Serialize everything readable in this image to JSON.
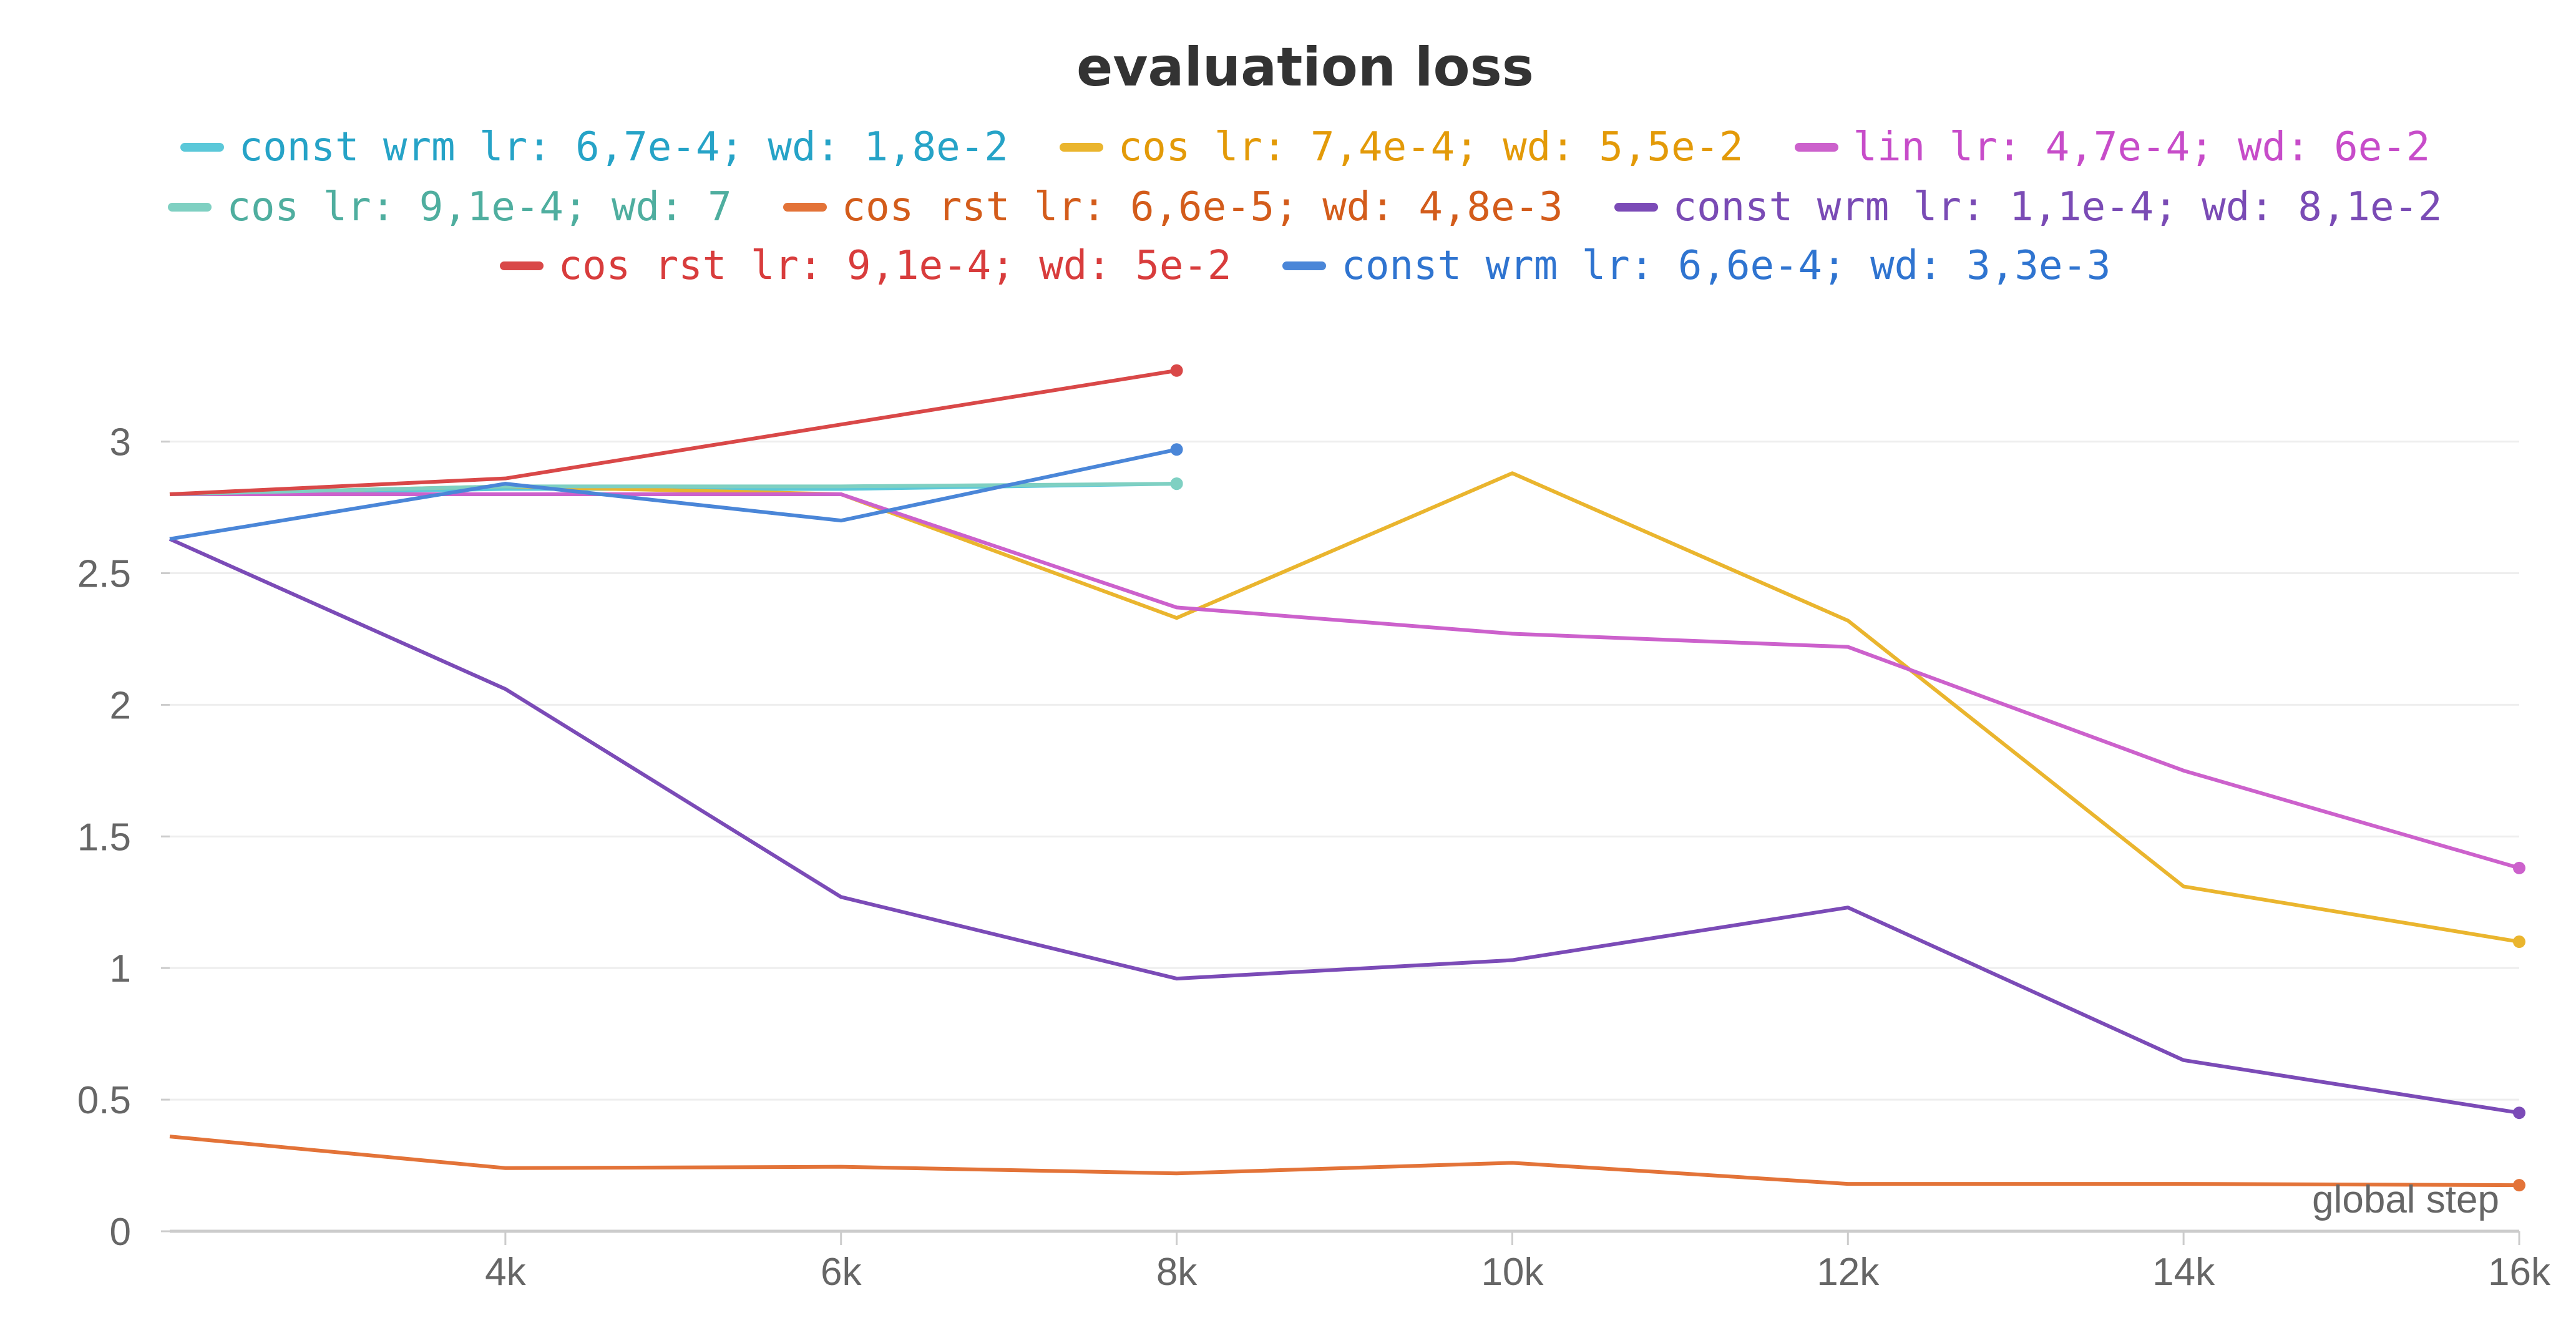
{
  "chart_data": {
    "type": "line",
    "title": "evaluation loss",
    "xlabel": "global step",
    "ylabel": "",
    "xlim": [
      2048,
      16384
    ],
    "ylim": [
      0,
      3.35
    ],
    "grid": true,
    "legend_placement": "top",
    "x_ticks": [
      {
        "value": 4096,
        "label": "4k"
      },
      {
        "value": 6144,
        "label": "6k"
      },
      {
        "value": 8192,
        "label": "8k"
      },
      {
        "value": 10240,
        "label": "10k"
      },
      {
        "value": 12288,
        "label": "12k"
      },
      {
        "value": 14336,
        "label": "14k"
      },
      {
        "value": 16384,
        "label": "16k"
      }
    ],
    "y_ticks": [
      {
        "value": 0,
        "label": "0"
      },
      {
        "value": 0.5,
        "label": "0.5"
      },
      {
        "value": 1,
        "label": "1"
      },
      {
        "value": 1.5,
        "label": "1.5"
      },
      {
        "value": 2,
        "label": "2"
      },
      {
        "value": 2.5,
        "label": "2.5"
      },
      {
        "value": 3,
        "label": "3"
      }
    ],
    "series": [
      {
        "name": "const wrm lr: 6,7e-4; wd: 1,8e-2",
        "color": "#5bc8d9",
        "text_color": "#26a3c7",
        "legend_row": 1,
        "x": [
          2048,
          4096,
          6144,
          8192
        ],
        "y": [
          2.8,
          2.82,
          2.82,
          2.84
        ]
      },
      {
        "name": "cos lr: 7,4e-4; wd: 5,5e-2",
        "color": "#eab52e",
        "text_color": "#e39a08",
        "legend_row": 1,
        "x": [
          2048,
          4096,
          6144,
          8192,
          10240,
          12288,
          14336,
          16384
        ],
        "y": [
          2.8,
          2.83,
          2.8,
          2.33,
          2.88,
          2.32,
          1.31,
          1.1
        ]
      },
      {
        "name": "lin lr: 4,7e-4; wd: 6e-2",
        "color": "#cc61cc",
        "text_color": "#c74cc9",
        "legend_row": 1,
        "x": [
          2048,
          4096,
          6144,
          8192,
          10240,
          12288,
          14336,
          16384
        ],
        "y": [
          2.8,
          2.8,
          2.8,
          2.37,
          2.27,
          2.22,
          1.75,
          1.38
        ]
      },
      {
        "name": "cos lr: 9,1e-4; wd: 7",
        "color": "#7fd0c2",
        "text_color": "#4fae9f",
        "legend_row": 2,
        "x": [
          2048,
          4096,
          6144,
          8192
        ],
        "y": [
          2.8,
          2.83,
          2.83,
          2.84
        ]
      },
      {
        "name": "cos rst lr: 6,6e-5; wd: 4,8e-3",
        "color": "#e37338",
        "text_color": "#d35c1b",
        "legend_row": 2,
        "x": [
          2048,
          4096,
          6144,
          8192,
          10240,
          12288,
          14336,
          16384
        ],
        "y": [
          0.36,
          0.24,
          0.245,
          0.22,
          0.26,
          0.18,
          0.18,
          0.175
        ]
      },
      {
        "name": "const wrm lr: 1,1e-4; wd: 8,1e-2",
        "color": "#7b4bb7",
        "text_color": "#7a4bb5",
        "legend_row": 2,
        "x": [
          2048,
          4096,
          6144,
          8192,
          10240,
          12288,
          14336,
          16384
        ],
        "y": [
          2.63,
          2.06,
          1.27,
          0.96,
          1.03,
          1.23,
          0.65,
          0.45
        ]
      },
      {
        "name": "cos rst lr: 9,1e-4; wd: 5e-2",
        "color": "#d94848",
        "text_color": "#d83c3c",
        "legend_row": 3,
        "x": [
          2048,
          4096,
          8192
        ],
        "y": [
          2.8,
          2.86,
          3.27
        ]
      },
      {
        "name": "const wrm lr: 6,6e-4; wd: 3,3e-3",
        "color": "#4a86d8",
        "text_color": "#2f74d0",
        "legend_row": 3,
        "x": [
          2048,
          4096,
          6144,
          8192
        ],
        "y": [
          2.63,
          2.84,
          2.7,
          2.97
        ]
      }
    ]
  }
}
